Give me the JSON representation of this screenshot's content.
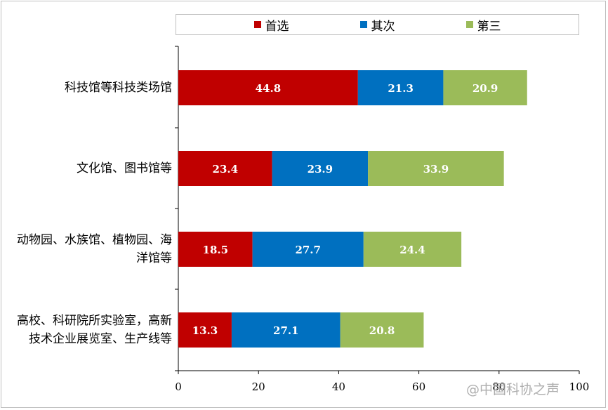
{
  "chart_data": {
    "type": "bar",
    "orientation": "horizontal",
    "stacked": true,
    "categories": [
      "科技馆等科技类场馆",
      "文化馆、图书馆等",
      "动物园、水族馆、植物园、海洋馆等",
      "高校、科研院所实验室，高新技术企业展览室、生产线等"
    ],
    "category_lines": [
      [
        "科技馆等科技类场馆"
      ],
      [
        "文化馆、图书馆等"
      ],
      [
        "动物园、水族馆、植物园、海",
        "洋馆等"
      ],
      [
        "高校、科研院所实验室，高新",
        "技术企业展览室、生产线等"
      ]
    ],
    "series": [
      {
        "name": "首选",
        "color": "#c00000",
        "values": [
          44.8,
          23.4,
          18.5,
          13.3
        ]
      },
      {
        "name": "其次",
        "color": "#0070c0",
        "values": [
          21.3,
          23.9,
          27.7,
          27.1
        ]
      },
      {
        "name": "第三",
        "color": "#9bbb59",
        "values": [
          20.9,
          33.9,
          24.4,
          20.8
        ]
      }
    ],
    "xlim": [
      0,
      100
    ],
    "xticks": [
      0,
      20,
      40,
      60,
      80,
      100
    ],
    "xtick_labels": [
      "0",
      "20",
      "40",
      "60",
      "80",
      "100"
    ],
    "legend": "top",
    "grid": false
  },
  "watermark": "@中国科协之声"
}
